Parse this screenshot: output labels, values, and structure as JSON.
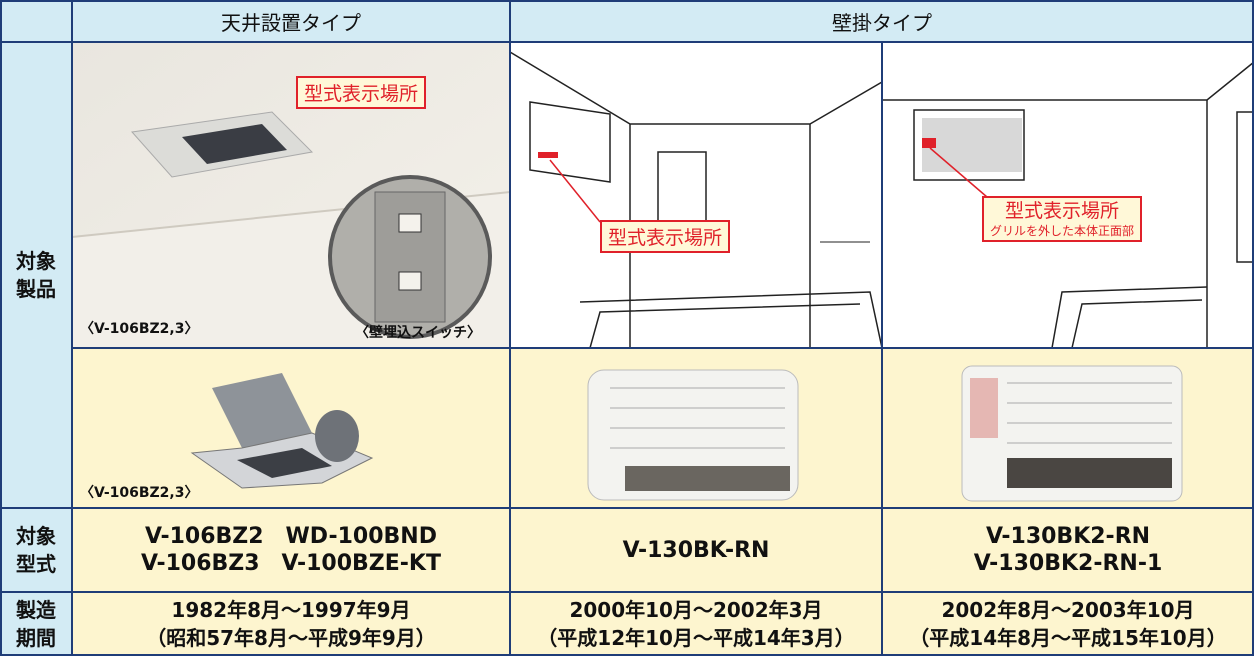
{
  "table": {
    "header": [
      "天井設置タイプ",
      "壁掛タイプ"
    ],
    "product_label": [
      "対象",
      "製品"
    ],
    "ceiling_photo": {
      "callout": "型式表示場所",
      "caption": "〈V-106BZ2,3〉",
      "switch_caption": "〈壁埋込スイッチ〉"
    },
    "wall_a_drawing": {
      "callout": "型式表示場所"
    },
    "wall_b_drawing": {
      "callout": "型式表示場所",
      "callout_note": "グリルを外した本体正面部"
    },
    "ceiling_unit_caption": "〈V-106BZ2,3〉",
    "model_label": [
      "対象",
      "型式"
    ],
    "models": [
      [
        "V-106BZ2　WD-100BND",
        "V-106BZ3　V-100BZE-KT"
      ],
      [
        "V-130BK-RN"
      ],
      [
        "V-130BK2-RN",
        "V-130BK2-RN-1"
      ]
    ],
    "period_label": [
      "製造",
      "期間"
    ],
    "periods": [
      [
        "1982年8月～1997年9月",
        "（昭和57年8月～平成9年9月）"
      ],
      [
        "2000年10月～2002年3月",
        "（平成12年10月～平成14年3月）"
      ],
      [
        "2002年8月～2003年10月",
        "（平成14年8月～平成15年10月）"
      ]
    ]
  }
}
